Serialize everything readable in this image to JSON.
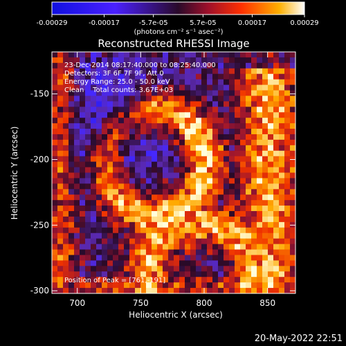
{
  "chart_data": {
    "type": "heatmap",
    "title": "Reconstructed RHESSI Image",
    "xlabel": "Heliocentric X (arcsec)",
    "ylabel": "Heliocentric Y (arcsec)",
    "xlim": [
      680,
      872
    ],
    "ylim": [
      -302,
      -118
    ],
    "x_ticks": [
      "700",
      "750",
      "800",
      "850"
    ],
    "y_ticks": [
      "-150",
      "-200",
      "-250",
      "-300"
    ],
    "colorbar": {
      "range": [
        -0.00029,
        0.00029
      ],
      "tick_labels": [
        "-0.00029",
        "-0.00017",
        "-5.7e-05",
        "5.7e-05",
        "0.00017",
        "0.00029"
      ],
      "unit_label": "(photons cm⁻² s⁻¹ asec⁻²)"
    },
    "info_lines": [
      "23-Dec-2014 08:17:40.000 to 08:25:40.000",
      "Detectors: 3F 6F 7F 9F, Att 0",
      "Energy Range: 25.0 - 50.0 keV",
      "Clean    Total counts: 3.67E+03"
    ],
    "peak_label": "Position of Peak = [761,-191]",
    "colors": {
      "background": "#000000",
      "text": "#ffffff"
    }
  },
  "footer": {
    "date": "20-May-2022 22:51"
  }
}
